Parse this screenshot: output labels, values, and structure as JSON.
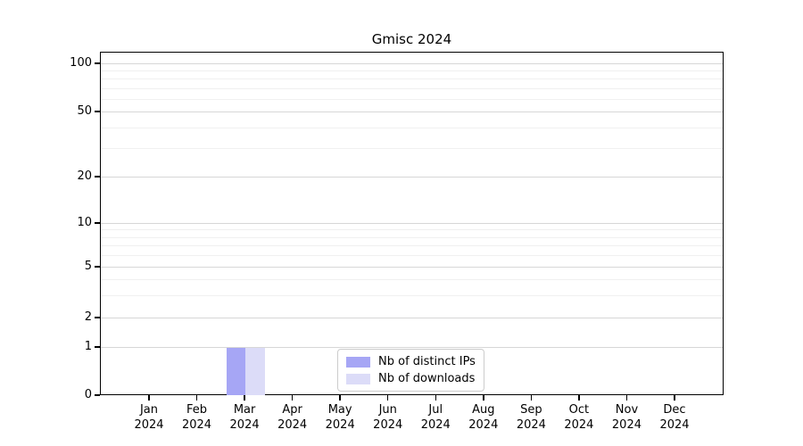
{
  "chart_data": {
    "type": "bar",
    "title": "Gmisc 2024",
    "xlabel": "",
    "ylabel": "",
    "year": "2024",
    "categories": [
      "Jan",
      "Feb",
      "Mar",
      "Apr",
      "May",
      "Jun",
      "Jul",
      "Aug",
      "Sep",
      "Oct",
      "Nov",
      "Dec"
    ],
    "series": [
      {
        "name": "Nb of distinct IPs",
        "color": "#a6a6f5",
        "values": [
          0,
          0,
          1,
          0,
          0,
          0,
          0,
          0,
          0,
          0,
          0,
          0
        ]
      },
      {
        "name": "Nb of downloads",
        "color": "#dcdcf8",
        "values": [
          0,
          0,
          1,
          0,
          0,
          0,
          0,
          0,
          0,
          0,
          0,
          0
        ]
      }
    ],
    "y_axis": {
      "scale": "symlog",
      "ylim": [
        0,
        120
      ],
      "ticks": [
        {
          "label": "100",
          "value": 100,
          "py": 13
        },
        {
          "label": "50",
          "value": 50,
          "py": 67
        },
        {
          "label": "20",
          "value": 20,
          "py": 140
        },
        {
          "label": "10",
          "value": 10,
          "py": 192
        },
        {
          "label": "5",
          "value": 5,
          "py": 241
        },
        {
          "label": "2",
          "value": 2,
          "py": 298
        },
        {
          "label": "1",
          "value": 1,
          "py": 331
        },
        {
          "label": "0",
          "value": 0,
          "py": 385
        }
      ],
      "minor_gridlines_py": [
        21,
        30,
        41,
        53,
        85,
        108,
        199,
        208,
        217,
        228,
        255,
        273
      ]
    },
    "grid": "both",
    "legend_position": "inside-bottom-center"
  }
}
